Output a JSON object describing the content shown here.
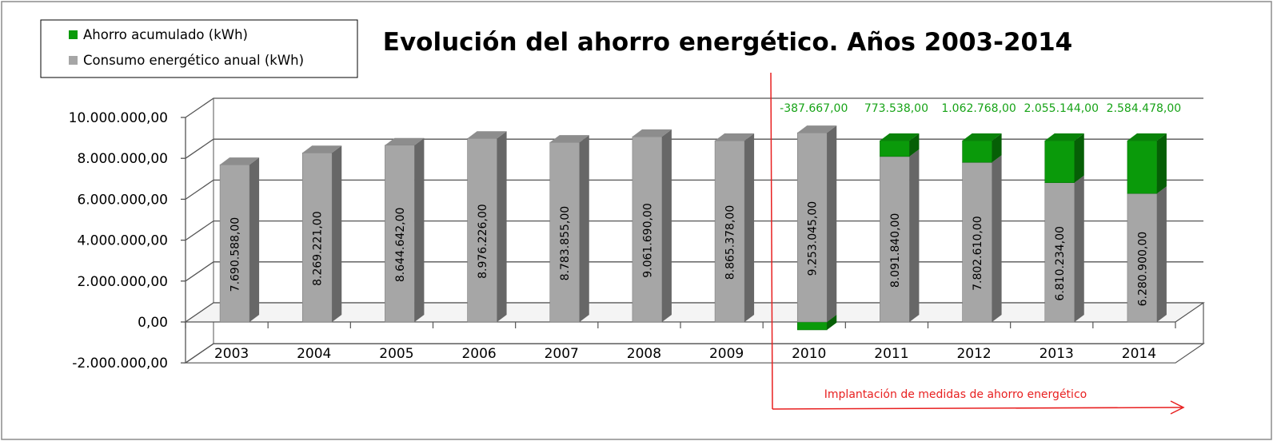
{
  "chart_data": {
    "type": "bar",
    "stacked": true,
    "three_d": true,
    "title": "Evolución del ahorro energético. Años 2003-2014",
    "categories": [
      "2003",
      "2004",
      "2005",
      "2006",
      "2007",
      "2008",
      "2009",
      "2010",
      "2011",
      "2012",
      "2013",
      "2014"
    ],
    "series": [
      {
        "name": "Ahorro acumulado (kWh)",
        "color": "#0a9a0a",
        "values": [
          null,
          null,
          null,
          null,
          null,
          null,
          null,
          -387667.0,
          773538.0,
          1062768.0,
          2055144.0,
          2584478.0
        ],
        "labels": [
          "",
          "",
          "",
          "",
          "",
          "",
          "",
          "-387.667,00",
          "773.538,00",
          "1.062.768,00",
          "2.055.144,00",
          "2.584.478,00"
        ]
      },
      {
        "name": "Consumo energético anual (kWh)",
        "color": "#a6a6a6",
        "values": [
          7690588.0,
          8269221.0,
          8644642.0,
          8976226.0,
          8783855.0,
          9061690.0,
          8865378.0,
          9253045.0,
          8091840.0,
          7802610.0,
          6810234.0,
          6280900.0
        ],
        "labels": [
          "7.690.588,00",
          "8.269.221,00",
          "8.644.642,00",
          "8.976.226,00",
          "8.783.855,00",
          "9.061.690,00",
          "8.865.378,00",
          "9.253.045,00",
          "8.091.840,00",
          "7.802.610,00",
          "6.810.234,00",
          "6.280.900,00"
        ]
      }
    ],
    "y_ticks": [
      "10.000.000,00",
      "8.000.000,00",
      "6.000.000,00",
      "4.000.000,00",
      "2.000.000,00",
      "0,00",
      "-2.000.000,00"
    ],
    "y_tick_values": [
      10000000,
      8000000,
      6000000,
      4000000,
      2000000,
      0,
      -2000000
    ],
    "ylim": [
      -2000000,
      10000000
    ],
    "grid": true,
    "legend_position": "top-left",
    "annotation": {
      "text": "Implantación de medidas de ahorro energético",
      "starts_at_category": "2010",
      "color": "#e82020"
    }
  }
}
